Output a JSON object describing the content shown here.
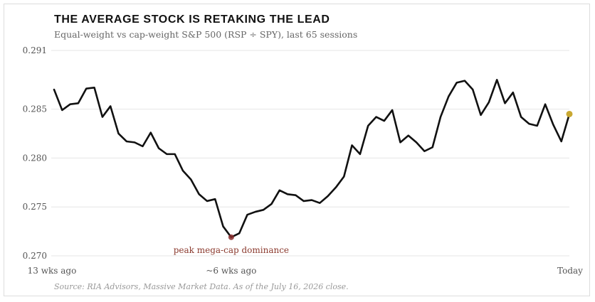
{
  "header": {
    "title": "THE AVERAGE STOCK IS RETAKING THE LEAD",
    "subtitle": "Equal-weight vs cap-weight S&P 500 (RSP ÷ SPY), last 65 sessions"
  },
  "footer": {
    "source": "Source: RIA Advisors, Massive Market Data. As of the July 16, 2026 close."
  },
  "colors": {
    "line": "#111111",
    "grid": "#e6e6e6",
    "trough_marker": "#8b2e2e",
    "trough_label": "#8b3a2e",
    "last_marker": "#c9a832"
  },
  "chart_data": {
    "type": "line",
    "series": [
      {
        "values": [
          0.287,
          0.2849,
          0.2855,
          0.2856,
          0.2871,
          0.2872,
          0.2842,
          0.2853,
          0.2825,
          0.2817,
          0.2816,
          0.2812,
          0.2826,
          0.281,
          0.2804,
          0.2804,
          0.2787,
          0.2778,
          0.2763,
          0.2756,
          0.2758,
          0.273,
          0.2719,
          0.2723,
          0.2742,
          0.2745,
          0.2747,
          0.2753,
          0.2767,
          0.2763,
          0.2762,
          0.2756,
          0.2757,
          0.2754,
          0.2761,
          0.277,
          0.2781,
          0.2813,
          0.2804,
          0.2833,
          0.2842,
          0.2838,
          0.2849,
          0.2816,
          0.2823,
          0.2816,
          0.2807,
          0.2811,
          0.2842,
          0.2863,
          0.2877,
          0.2879,
          0.287,
          0.2844,
          0.2857,
          0.288,
          0.2856,
          0.2867,
          0.2842,
          0.2835,
          0.2833,
          0.2855,
          0.2834,
          0.2817,
          0.2845
        ]
      }
    ],
    "ylim": [
      0.27,
      0.291
    ],
    "yticks": [
      "0.291",
      "0.285",
      "0.280",
      "0.275",
      "0.270"
    ],
    "ytick_values": [
      0.291,
      0.285,
      0.28,
      0.275,
      0.27
    ],
    "xticks": [
      {
        "label": "13 wks ago",
        "index": 0
      },
      {
        "label": "~6 wks ago",
        "index": 22
      },
      {
        "label": "Today",
        "index": 64
      }
    ],
    "annotations": [
      {
        "text": "peak mega-cap dominance",
        "index": 22
      }
    ],
    "grid": "horizontal",
    "xlabel": "",
    "ylabel": ""
  }
}
